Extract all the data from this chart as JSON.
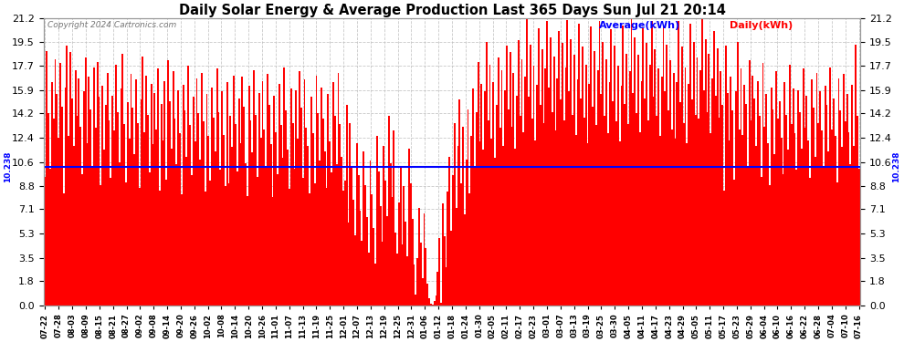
{
  "title": "Daily Solar Energy & Average Production Last 365 Days Sun Jul 21 20:14",
  "copyright": "Copyright 2024 Cartronics.com",
  "legend_avg": "Average(kWh)",
  "legend_daily": "Daily(kWh)",
  "average_value": 10.238,
  "yticks": [
    0.0,
    1.8,
    3.5,
    5.3,
    7.1,
    8.8,
    10.6,
    12.4,
    14.2,
    15.9,
    17.7,
    19.5,
    21.2
  ],
  "ymax": 21.2,
  "ymin": 0.0,
  "bar_color": "#ff0000",
  "avg_line_color": "#0000ff",
  "background_color": "#ffffff",
  "grid_color": "#bbbbbb",
  "title_color": "#000000",
  "copyright_color": "#555555",
  "x_labels": [
    "07-22",
    "07-28",
    "08-03",
    "08-09",
    "08-15",
    "08-21",
    "08-27",
    "09-02",
    "09-08",
    "09-14",
    "09-20",
    "09-26",
    "10-02",
    "10-08",
    "10-14",
    "10-20",
    "10-26",
    "11-01",
    "11-07",
    "11-13",
    "11-19",
    "11-25",
    "12-01",
    "12-07",
    "12-13",
    "12-19",
    "12-25",
    "12-31",
    "01-06",
    "01-12",
    "01-18",
    "01-24",
    "01-30",
    "02-05",
    "02-11",
    "02-17",
    "02-23",
    "03-01",
    "03-07",
    "03-13",
    "03-19",
    "03-25",
    "03-30",
    "04-05",
    "04-11",
    "04-17",
    "04-23",
    "04-29",
    "05-05",
    "05-11",
    "05-17",
    "05-23",
    "05-29",
    "06-04",
    "06-10",
    "06-16",
    "06-22",
    "06-28",
    "07-04",
    "07-10",
    "07-16"
  ],
  "daily_values": [
    9.5,
    18.8,
    14.2,
    10.1,
    16.5,
    13.8,
    18.2,
    15.6,
    12.4,
    17.9,
    14.7,
    8.3,
    16.1,
    19.2,
    12.5,
    18.7,
    15.3,
    11.8,
    17.4,
    14.0,
    16.8,
    13.2,
    9.7,
    15.8,
    18.3,
    12.0,
    16.9,
    14.5,
    10.3,
    17.6,
    13.1,
    18.0,
    15.4,
    8.9,
    16.2,
    11.5,
    14.8,
    17.2,
    13.7,
    9.4,
    15.5,
    12.9,
    17.8,
    14.3,
    10.6,
    16.0,
    18.6,
    13.4,
    9.1,
    15.0,
    12.3,
    17.1,
    14.6,
    11.2,
    16.7,
    13.5,
    8.7,
    15.2,
    18.4,
    12.8,
    17.0,
    14.1,
    9.8,
    16.4,
    11.9,
    15.7,
    13.0,
    17.5,
    8.5,
    14.9,
    12.2,
    16.6,
    9.3,
    18.1,
    15.1,
    11.6,
    17.3,
    13.8,
    10.4,
    15.9,
    12.7,
    8.2,
    16.3,
    14.4,
    11.0,
    17.7,
    13.3,
    9.6,
    15.4,
    12.1,
    16.8,
    14.2,
    10.8,
    17.2,
    13.6,
    8.4,
    15.6,
    12.5,
    9.2,
    16.1,
    13.9,
    11.4,
    17.5,
    14.3,
    10.0,
    15.8,
    12.6,
    8.8,
    16.5,
    9.0,
    14.0,
    11.7,
    17.0,
    13.4,
    9.9,
    15.3,
    12.0,
    16.9,
    14.7,
    10.5,
    8.1,
    16.2,
    13.7,
    11.3,
    17.4,
    14.1,
    9.5,
    15.7,
    12.4,
    16.6,
    13.0,
    10.2,
    17.1,
    14.8,
    11.9,
    8.0,
    15.5,
    12.8,
    9.7,
    16.4,
    13.3,
    10.9,
    17.6,
    14.4,
    11.5,
    8.6,
    16.0,
    13.5,
    10.1,
    15.9,
    12.3,
    17.3,
    14.6,
    9.4,
    16.7,
    13.1,
    11.8,
    8.3,
    15.4,
    12.7,
    9.0,
    17.0,
    14.2,
    10.7,
    16.1,
    13.8,
    11.4,
    8.7,
    15.6,
    12.1,
    9.8,
    16.5,
    14.0,
    10.4,
    17.2,
    13.4,
    11.0,
    8.5,
    9.2,
    14.8,
    6.1,
    13.5,
    10.3,
    7.8,
    5.2,
    12.0,
    9.6,
    7.0,
    4.8,
    11.4,
    8.9,
    6.5,
    3.9,
    10.7,
    8.2,
    5.7,
    3.1,
    12.5,
    9.9,
    7.3,
    4.7,
    11.8,
    9.2,
    6.6,
    14.0,
    10.5,
    8.0,
    12.9,
    5.4,
    3.8,
    7.6,
    10.2,
    4.5,
    8.8,
    6.2,
    3.6,
    11.6,
    9.0,
    6.4,
    3.0,
    0.8,
    3.5,
    7.2,
    4.6,
    2.0,
    6.8,
    4.2,
    1.6,
    0.5,
    0.1,
    0.05,
    0.3,
    0.7,
    2.5,
    5.0,
    0.2,
    7.5,
    5.1,
    2.8,
    8.4,
    11.0,
    5.5,
    9.6,
    13.5,
    7.2,
    11.8,
    15.2,
    9.0,
    13.2,
    6.7,
    10.8,
    14.5,
    8.3,
    12.5,
    16.0,
    10.2,
    14.3,
    18.0,
    12.1,
    16.4,
    11.5,
    15.8,
    19.5,
    13.7,
    17.8,
    12.3,
    16.5,
    10.9,
    14.8,
    18.3,
    13.1,
    17.4,
    11.8,
    15.9,
    19.2,
    14.5,
    18.7,
    13.2,
    17.2,
    11.6,
    15.5,
    19.6,
    14.0,
    18.2,
    12.8,
    16.9,
    21.2,
    15.4,
    19.3,
    13.8,
    17.7,
    12.2,
    16.3,
    20.5,
    14.8,
    18.9,
    13.5,
    17.5,
    21.0,
    16.1,
    19.8,
    14.3,
    18.4,
    12.9,
    16.8,
    20.3,
    15.2,
    19.4,
    13.7,
    17.6,
    21.1,
    15.8,
    19.7,
    14.1,
    18.5,
    12.6,
    16.7,
    20.8,
    15.3,
    19.1,
    13.9,
    17.8,
    12.0,
    16.4,
    20.6,
    14.7,
    18.8,
    13.3,
    17.4,
    21.0,
    15.6,
    19.5,
    14.0,
    18.2,
    12.7,
    16.5,
    20.4,
    15.1,
    19.2,
    13.6,
    17.7,
    12.1,
    16.2,
    20.7,
    14.9,
    18.6,
    13.4,
    17.3,
    21.2,
    15.7,
    19.8,
    14.2,
    18.5,
    12.8,
    16.6,
    20.5,
    15.3,
    19.4,
    13.7,
    17.8,
    21.0,
    15.4,
    18.9,
    14.0,
    17.5,
    12.5,
    16.9,
    20.6,
    15.8,
    19.3,
    14.4,
    18.1,
    13.0,
    17.2,
    12.3,
    16.5,
    21.0,
    15.0,
    19.1,
    13.5,
    17.6,
    12.0,
    16.4,
    20.8,
    15.2,
    19.5,
    14.1,
    18.3,
    13.8,
    17.4,
    21.2,
    15.9,
    19.7,
    14.3,
    18.6,
    12.7,
    16.8,
    20.3,
    15.5,
    19.0,
    13.9,
    17.3,
    14.8,
    8.5,
    19.2,
    15.7,
    12.2,
    16.9,
    14.4,
    9.3,
    15.8,
    19.5,
    13.0,
    17.5,
    12.6,
    16.3,
    14.9,
    10.2,
    18.1,
    13.7,
    17.0,
    15.3,
    11.8,
    16.6,
    14.0,
    9.5,
    17.9,
    13.2,
    15.6,
    12.0,
    8.9,
    16.1,
    14.5,
    11.2,
    17.3,
    13.8,
    15.1,
    12.4,
    9.7,
    16.5,
    14.1,
    11.5,
    17.8,
    13.4,
    16.0,
    12.7,
    10.0,
    15.9,
    14.3,
    11.6,
    17.5,
    13.1,
    15.5,
    12.2,
    9.4,
    16.7,
    14.6,
    11.0,
    17.2,
    13.5,
    15.8,
    12.9,
    10.3,
    16.2,
    14.8,
    11.4,
    17.6,
    13.0,
    15.3,
    12.5,
    9.1,
    16.8,
    14.4,
    11.7,
    17.1,
    13.6,
    15.6,
    12.8,
    10.4,
    16.3,
    11.8,
    19.3,
    14.0,
    10.1
  ]
}
